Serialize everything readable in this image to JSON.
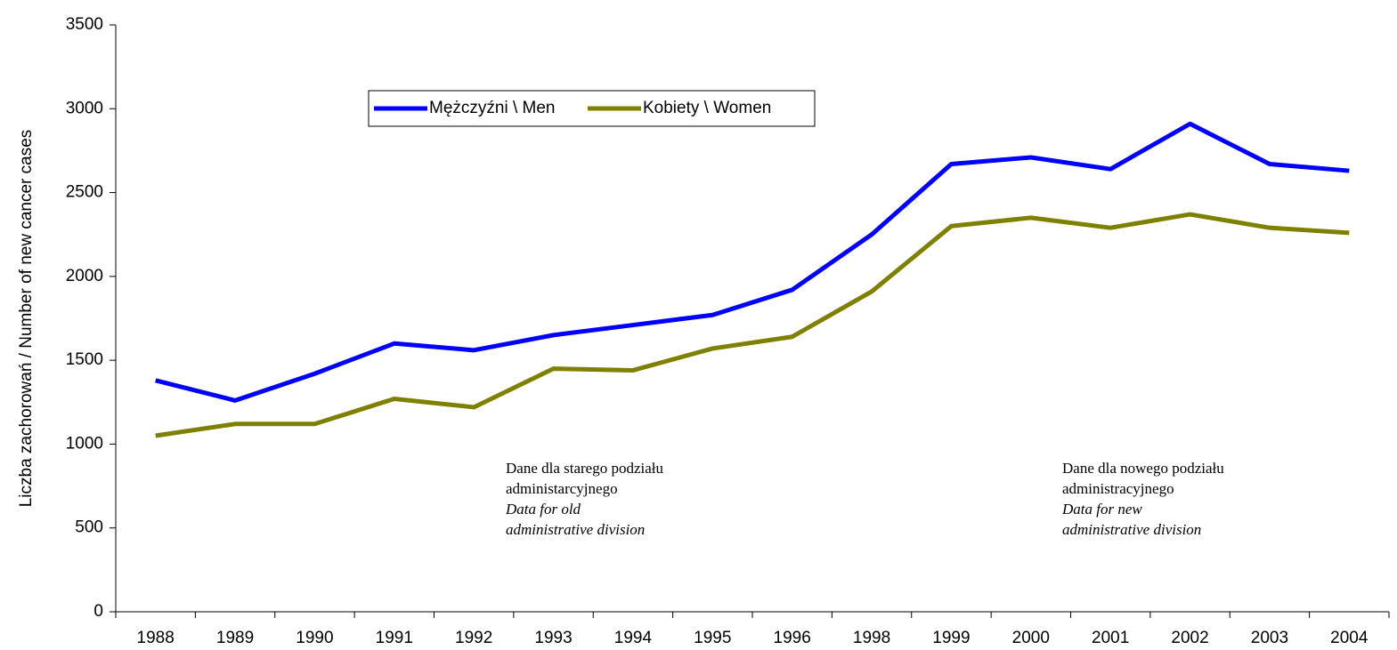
{
  "chart_data": {
    "type": "line",
    "y_label": "Liczba zachorowań / Number of new cancer cases",
    "categories": [
      "1988",
      "1989",
      "1990",
      "1991",
      "1992",
      "1993",
      "1994",
      "1995",
      "1996",
      "1998",
      "1999",
      "2000",
      "2001",
      "2002",
      "2003",
      "2004"
    ],
    "series": [
      {
        "name": "Mężczyźni \\ Men",
        "color": "#0000ff",
        "values": [
          1380,
          1260,
          1420,
          1600,
          1560,
          1650,
          1710,
          1770,
          1920,
          2250,
          2670,
          2710,
          2640,
          2910,
          2670,
          2630
        ]
      },
      {
        "name": "Kobiety \\ Women",
        "color": "#808000",
        "values": [
          1050,
          1120,
          1120,
          1270,
          1220,
          1450,
          1440,
          1570,
          1640,
          1910,
          2300,
          2350,
          2290,
          2370,
          2290,
          2260
        ]
      }
    ],
    "ylim": [
      0,
      3500
    ],
    "yticks": [
      0,
      500,
      1000,
      1500,
      2000,
      2500,
      3000,
      3500
    ],
    "annotations": [
      {
        "lines": [
          "Dane dla starego podziału",
          "administarcyjnego"
        ],
        "italic_lines": [
          "Data for old",
          "administrative division"
        ]
      },
      {
        "lines": [
          "Dane dla nowego podziału",
          "administracyjnego"
        ],
        "italic_lines": [
          "Data for new",
          "administrative division"
        ]
      }
    ]
  }
}
